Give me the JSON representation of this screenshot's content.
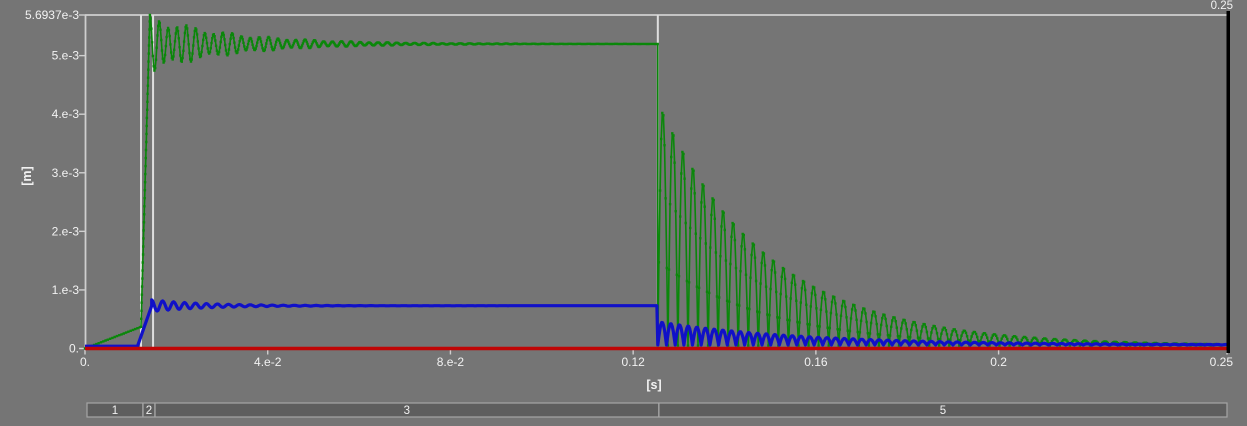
{
  "palette": {
    "background": "#757575",
    "axis": "#cfcfcf",
    "event_line": "#dedede",
    "text": "#f2f2f2",
    "cursor": "#000000",
    "bar_fill": "#5e5e5e",
    "bar_border": "#a6a6a6",
    "green": "#0a870a",
    "blue": "#1010c8",
    "red": "#c00505"
  },
  "cursor": {
    "label": "0.25",
    "time": 0.25
  },
  "chart_data": {
    "type": "line",
    "title": "",
    "xlabel": "[s]",
    "ylabel": "[m]",
    "xlim": [
      0,
      0.25
    ],
    "ylim": [
      0,
      0.0056937
    ],
    "grid": "top-boundary-line-only",
    "legend": "none",
    "x_ticks": [
      {
        "value": 0.0,
        "label": "0."
      },
      {
        "value": 0.04,
        "label": "4.e-2"
      },
      {
        "value": 0.08,
        "label": "8.e-2"
      },
      {
        "value": 0.12,
        "label": "0.12"
      },
      {
        "value": 0.16,
        "label": "0.16"
      },
      {
        "value": 0.2,
        "label": "0.2"
      },
      {
        "value": 0.25,
        "label": "0.25"
      }
    ],
    "y_ticks": [
      {
        "value": 0.0056937,
        "label": "5.6937e-3"
      },
      {
        "value": 0.005,
        "label": "5.e-3"
      },
      {
        "value": 0.004,
        "label": "4.e-3"
      },
      {
        "value": 0.003,
        "label": "3.e-3"
      },
      {
        "value": 0.002,
        "label": "2.e-3"
      },
      {
        "value": 0.001,
        "label": "1.e-3"
      },
      {
        "value": 0.0,
        "label": "0."
      }
    ],
    "event_lines": [
      0.01226,
      0.0149,
      0.1254
    ],
    "annotations": {
      "green_peak": 0.0056937,
      "green_plateau": 0.0052,
      "green_value_at_first_event": 0.00037,
      "blue_plateau": 0.00073,
      "red_constant": 0.0,
      "step_rise_time": 0.0123,
      "release_time": 0.1254,
      "end_time": 0.25
    },
    "series": [
      {
        "name": "green-displacement",
        "color": "#0a870a",
        "width": 1.6,
        "marker": true,
        "marker_size": 2.4,
        "segments": [
          {
            "type": "linear",
            "t0": 0.0,
            "t1": 0.01226,
            "y0": 0.0,
            "y1": 0.00037,
            "step": 0.0005
          },
          {
            "type": "linear",
            "t0": 0.01226,
            "t1": 0.0142,
            "y0": 0.00037,
            "y1": 0.0056937,
            "step": 5e-05
          },
          {
            "type": "osc",
            "t0": 0.0142,
            "t1": 0.1254,
            "base": 0.0052,
            "amp": 0.00042,
            "tau": 0.018,
            "period": 0.002,
            "amp2": 8e-05,
            "period2": 0.0026
          },
          {
            "type": "spikes",
            "t0": 0.1254,
            "t1": 0.25,
            "base": 5e-05,
            "amp": 0.0042,
            "tau": 0.024,
            "period": 0.0022
          }
        ]
      },
      {
        "name": "blue-displacement",
        "color": "#1010c8",
        "width": 3.2,
        "marker": false,
        "segments": [
          {
            "type": "const",
            "t0": 0.0,
            "t1": 0.0115,
            "y": 4e-05
          },
          {
            "type": "linear",
            "t0": 0.0115,
            "t1": 0.0146,
            "y0": 4e-05,
            "y1": 0.00073,
            "step": 0.0008
          },
          {
            "type": "osc",
            "t0": 0.0146,
            "t1": 0.1254,
            "base": 0.00073,
            "amp": 0.0001,
            "tau": 0.012,
            "period": 0.0024
          },
          {
            "type": "spikes",
            "t0": 0.1254,
            "t1": 0.25,
            "base": 6e-05,
            "amp": 0.0004,
            "tau": 0.032,
            "period": 0.0019
          }
        ]
      },
      {
        "name": "red-displacement",
        "color": "#c00505",
        "width": 3.4,
        "marker": false,
        "segments": [
          {
            "type": "const",
            "t0": 0.0,
            "t1": 0.25,
            "y": 0.0
          }
        ]
      }
    ]
  },
  "timeline_bar": {
    "segments": [
      {
        "label": "1",
        "t0": 0.0,
        "t1": 0.01226
      },
      {
        "label": "2",
        "t0": 0.01226,
        "t1": 0.0149
      },
      {
        "label": "3",
        "t0": 0.0149,
        "t1": 0.1254
      },
      {
        "label": "5",
        "t0": 0.1254,
        "t1": 0.25
      }
    ]
  }
}
